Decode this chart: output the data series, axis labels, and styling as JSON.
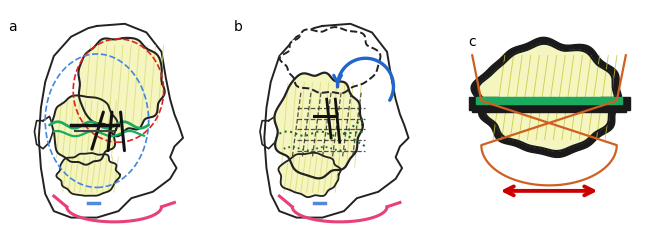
{
  "fig_width": 6.47,
  "fig_height": 2.5,
  "dpi": 100,
  "bg_color": "#ffffff",
  "label_a": "a",
  "label_b": "b",
  "label_c": "c",
  "omental_fill": "#f5f5c0",
  "omental_outline": "#222222",
  "head_outline": "#222222",
  "green_color": "#1aaa60",
  "pink_color": "#e8407a",
  "red_dashed": "#dd2222",
  "blue_dashed": "#4488dd",
  "blue_arrow": "#2266cc",
  "orange_color": "#d06020",
  "dark_green_dot": "#226644"
}
